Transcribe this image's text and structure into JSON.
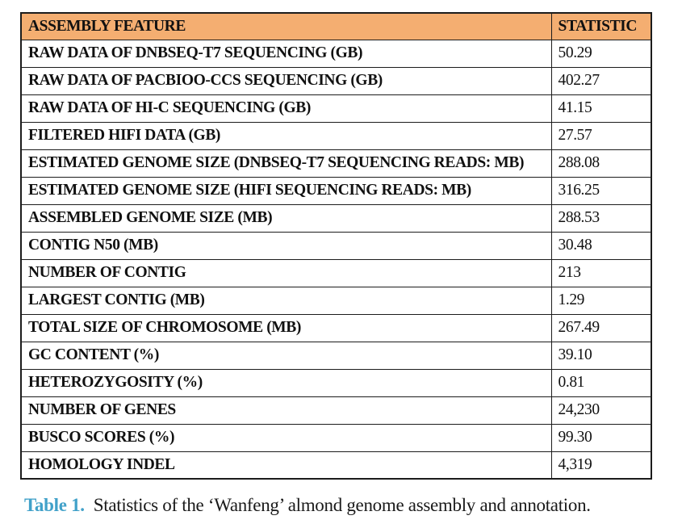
{
  "table": {
    "columns": [
      "ASSEMBLY FEATURE",
      "STATISTIC"
    ],
    "rows": [
      {
        "feature": "RAW DATA OF DNBSEQ-T7 SEQUENCING (GB)",
        "statistic": "50.29"
      },
      {
        "feature": "RAW DATA OF PACBIOO-CCS SEQUENCING (GB)",
        "statistic": "402.27"
      },
      {
        "feature": "RAW DATA OF HI-C SEQUENCING (GB)",
        "statistic": "41.15"
      },
      {
        "feature": "FILTERED HIFI DATA (GB)",
        "statistic": "27.57"
      },
      {
        "feature": "ESTIMATED GENOME SIZE (DNBSEQ-T7 SEQUENCING READS: MB)",
        "statistic": "288.08"
      },
      {
        "feature": "ESTIMATED GENOME SIZE (HIFI SEQUENCING READS: MB)",
        "statistic": "316.25"
      },
      {
        "feature": "ASSEMBLED GENOME SIZE (MB)",
        "statistic": "288.53"
      },
      {
        "feature": "CONTIG N50 (MB)",
        "statistic": "30.48"
      },
      {
        "feature": "NUMBER OF CONTIG",
        "statistic": "213"
      },
      {
        "feature": "LARGEST CONTIG (MB)",
        "statistic": "1.29"
      },
      {
        "feature": "TOTAL SIZE OF CHROMOSOME (MB)",
        "statistic": "267.49"
      },
      {
        "feature": "GC CONTENT (%)",
        "statistic": "39.10"
      },
      {
        "feature": "HETEROZYGOSITY (%)",
        "statistic": "0.81"
      },
      {
        "feature": "NUMBER OF GENES",
        "statistic": "24,230"
      },
      {
        "feature": "BUSCO SCORES (%)",
        "statistic": "99.30"
      },
      {
        "feature": "HOMOLOGY INDEL",
        "statistic": "4,319"
      }
    ]
  },
  "caption": {
    "label": "Table 1.",
    "text": "Statistics of the ‘Wanfeng’ almond genome assembly and annotation."
  },
  "colors": {
    "header_bg": "#f4ae71",
    "caption_label": "#41a1c9",
    "border": "#1c1c1c"
  }
}
